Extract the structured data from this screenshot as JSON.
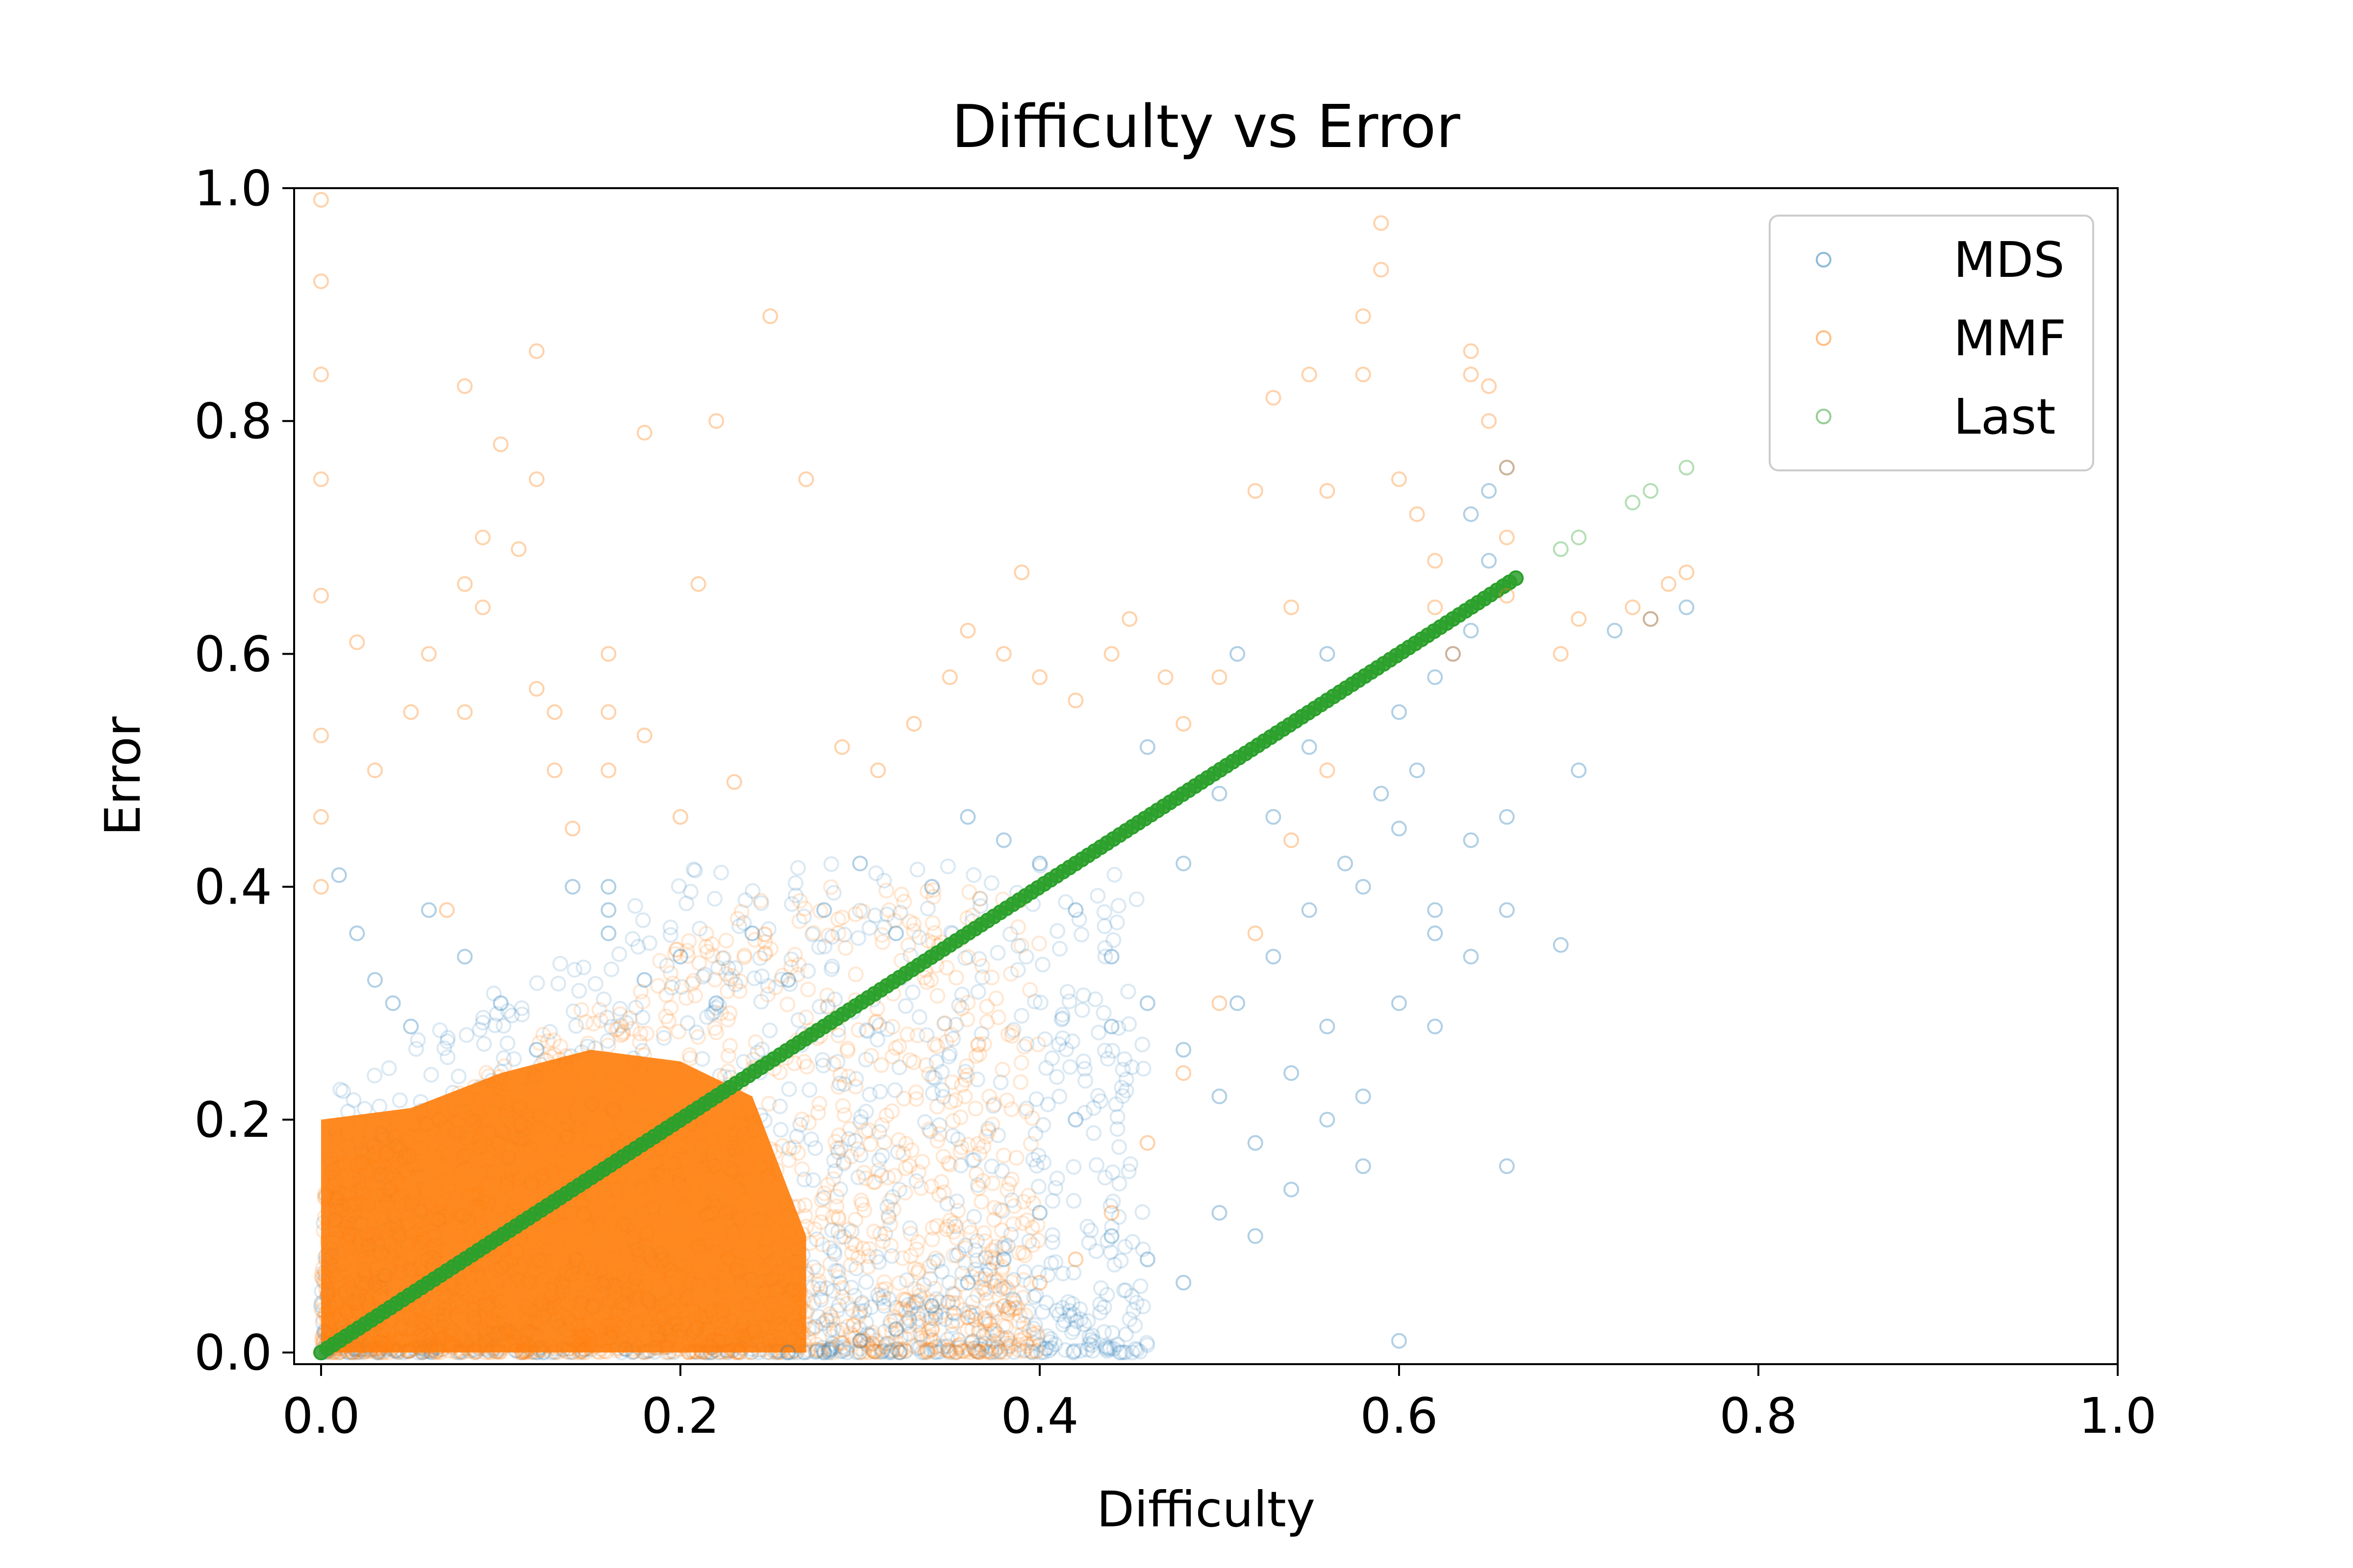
{
  "chart_data": {
    "type": "scatter",
    "title": "Difficulty vs Error",
    "xlabel": "Difficulty",
    "ylabel": "Error",
    "xlim": [
      -0.015,
      1.0
    ],
    "ylim": [
      -0.01,
      1.0
    ],
    "xticks": [
      "0.0",
      "0.2",
      "0.4",
      "0.6",
      "0.8",
      "1.0"
    ],
    "yticks": [
      "0.0",
      "0.2",
      "0.4",
      "0.6",
      "0.8",
      "1.0"
    ],
    "xtick_values": [
      0.0,
      0.2,
      0.4,
      0.6,
      0.8,
      1.0
    ],
    "ytick_values": [
      0.0,
      0.2,
      0.4,
      0.6,
      0.8,
      1.0
    ],
    "grid": false,
    "legend_position": "top-right",
    "marker": "hollow-circle",
    "series": [
      {
        "name": "MDS",
        "color": "#1f77b4",
        "opacity": 0.15,
        "points": [
          [
            0.01,
            0.41
          ],
          [
            0.02,
            0.36
          ],
          [
            0.03,
            0.32
          ],
          [
            0.04,
            0.3
          ],
          [
            0.05,
            0.28
          ],
          [
            0.06,
            0.38
          ],
          [
            0.08,
            0.34
          ],
          [
            0.1,
            0.3
          ],
          [
            0.12,
            0.26
          ],
          [
            0.14,
            0.4
          ],
          [
            0.16,
            0.38
          ],
          [
            0.16,
            0.4
          ],
          [
            0.16,
            0.36
          ],
          [
            0.18,
            0.32
          ],
          [
            0.2,
            0.34
          ],
          [
            0.22,
            0.3
          ],
          [
            0.24,
            0.36
          ],
          [
            0.26,
            0.32
          ],
          [
            0.28,
            0.38
          ],
          [
            0.3,
            0.42
          ],
          [
            0.32,
            0.36
          ],
          [
            0.34,
            0.4
          ],
          [
            0.36,
            0.46
          ],
          [
            0.38,
            0.44
          ],
          [
            0.4,
            0.42
          ],
          [
            0.42,
            0.38
          ],
          [
            0.44,
            0.34
          ],
          [
            0.46,
            0.3
          ],
          [
            0.48,
            0.26
          ],
          [
            0.5,
            0.22
          ],
          [
            0.52,
            0.18
          ],
          [
            0.54,
            0.14
          ],
          [
            0.56,
            0.2
          ],
          [
            0.58,
            0.16
          ],
          [
            0.6,
            0.01
          ],
          [
            0.62,
            0.28
          ],
          [
            0.64,
            0.34
          ],
          [
            0.66,
            0.38
          ],
          [
            0.65,
            0.74
          ],
          [
            0.66,
            0.76
          ],
          [
            0.64,
            0.72
          ],
          [
            0.65,
            0.68
          ],
          [
            0.7,
            0.5
          ],
          [
            0.74,
            0.63
          ],
          [
            0.76,
            0.64
          ],
          [
            0.72,
            0.62
          ],
          [
            0.69,
            0.35
          ],
          [
            0.66,
            0.16
          ],
          [
            0.62,
            0.36
          ],
          [
            0.6,
            0.45
          ],
          [
            0.58,
            0.4
          ],
          [
            0.56,
            0.6
          ],
          [
            0.55,
            0.52
          ],
          [
            0.53,
            0.46
          ],
          [
            0.51,
            0.6
          ],
          [
            0.5,
            0.48
          ],
          [
            0.48,
            0.42
          ],
          [
            0.46,
            0.52
          ],
          [
            0.44,
            0.28
          ],
          [
            0.42,
            0.2
          ],
          [
            0.4,
            0.12
          ],
          [
            0.38,
            0.08
          ],
          [
            0.36,
            0.06
          ],
          [
            0.34,
            0.04
          ],
          [
            0.32,
            0.02
          ],
          [
            0.3,
            0.01
          ],
          [
            0.28,
            0.0
          ],
          [
            0.26,
            0.0
          ],
          [
            0.44,
            0.1
          ],
          [
            0.46,
            0.08
          ],
          [
            0.48,
            0.06
          ],
          [
            0.5,
            0.12
          ],
          [
            0.52,
            0.1
          ],
          [
            0.54,
            0.24
          ],
          [
            0.56,
            0.28
          ],
          [
            0.58,
            0.22
          ],
          [
            0.6,
            0.3
          ],
          [
            0.62,
            0.38
          ],
          [
            0.64,
            0.44
          ],
          [
            0.66,
            0.46
          ],
          [
            0.6,
            0.55
          ],
          [
            0.62,
            0.58
          ],
          [
            0.63,
            0.6
          ],
          [
            0.64,
            0.62
          ],
          [
            0.61,
            0.5
          ],
          [
            0.59,
            0.48
          ],
          [
            0.57,
            0.42
          ],
          [
            0.55,
            0.38
          ],
          [
            0.53,
            0.34
          ],
          [
            0.51,
            0.3
          ]
        ]
      },
      {
        "name": "MMF",
        "color": "#ff7f0e",
        "opacity": 0.15,
        "points": [
          [
            0.0,
            0.99
          ],
          [
            0.0,
            0.92
          ],
          [
            0.0,
            0.84
          ],
          [
            0.0,
            0.75
          ],
          [
            0.0,
            0.65
          ],
          [
            0.0,
            0.53
          ],
          [
            0.0,
            0.46
          ],
          [
            0.0,
            0.4
          ],
          [
            0.02,
            0.61
          ],
          [
            0.03,
            0.5
          ],
          [
            0.05,
            0.55
          ],
          [
            0.06,
            0.6
          ],
          [
            0.07,
            0.38
          ],
          [
            0.08,
            0.55
          ],
          [
            0.08,
            0.66
          ],
          [
            0.08,
            0.83
          ],
          [
            0.09,
            0.7
          ],
          [
            0.09,
            0.64
          ],
          [
            0.1,
            0.78
          ],
          [
            0.11,
            0.69
          ],
          [
            0.12,
            0.86
          ],
          [
            0.12,
            0.75
          ],
          [
            0.12,
            0.57
          ],
          [
            0.13,
            0.55
          ],
          [
            0.13,
            0.5
          ],
          [
            0.14,
            0.45
          ],
          [
            0.16,
            0.6
          ],
          [
            0.16,
            0.55
          ],
          [
            0.16,
            0.5
          ],
          [
            0.18,
            0.79
          ],
          [
            0.18,
            0.53
          ],
          [
            0.2,
            0.46
          ],
          [
            0.21,
            0.66
          ],
          [
            0.22,
            0.8
          ],
          [
            0.23,
            0.49
          ],
          [
            0.25,
            0.89
          ],
          [
            0.27,
            0.75
          ],
          [
            0.29,
            0.52
          ],
          [
            0.31,
            0.5
          ],
          [
            0.33,
            0.54
          ],
          [
            0.35,
            0.58
          ],
          [
            0.36,
            0.62
          ],
          [
            0.38,
            0.6
          ],
          [
            0.39,
            0.67
          ],
          [
            0.4,
            0.58
          ],
          [
            0.42,
            0.56
          ],
          [
            0.44,
            0.6
          ],
          [
            0.45,
            0.63
          ],
          [
            0.47,
            0.58
          ],
          [
            0.48,
            0.54
          ],
          [
            0.5,
            0.58
          ],
          [
            0.52,
            0.74
          ],
          [
            0.53,
            0.82
          ],
          [
            0.54,
            0.64
          ],
          [
            0.55,
            0.84
          ],
          [
            0.56,
            0.74
          ],
          [
            0.58,
            0.84
          ],
          [
            0.58,
            0.89
          ],
          [
            0.59,
            0.97
          ],
          [
            0.59,
            0.93
          ],
          [
            0.6,
            0.75
          ],
          [
            0.61,
            0.72
          ],
          [
            0.62,
            0.68
          ],
          [
            0.62,
            0.64
          ],
          [
            0.63,
            0.6
          ],
          [
            0.64,
            0.84
          ],
          [
            0.64,
            0.86
          ],
          [
            0.65,
            0.83
          ],
          [
            0.65,
            0.8
          ],
          [
            0.66,
            0.76
          ],
          [
            0.66,
            0.7
          ],
          [
            0.66,
            0.65
          ],
          [
            0.69,
            0.6
          ],
          [
            0.7,
            0.63
          ],
          [
            0.73,
            0.64
          ],
          [
            0.75,
            0.66
          ],
          [
            0.76,
            0.67
          ],
          [
            0.74,
            0.63
          ],
          [
            0.56,
            0.5
          ],
          [
            0.54,
            0.44
          ],
          [
            0.52,
            0.36
          ],
          [
            0.5,
            0.3
          ],
          [
            0.48,
            0.24
          ],
          [
            0.46,
            0.18
          ],
          [
            0.44,
            0.12
          ],
          [
            0.42,
            0.08
          ],
          [
            0.4,
            0.06
          ],
          [
            0.38,
            0.04
          ],
          [
            0.36,
            0.03
          ],
          [
            0.34,
            0.02
          ]
        ]
      },
      {
        "name": "Last",
        "color": "#2ca02c",
        "opacity": 0.15,
        "points": [
          [
            0.66,
            0.66
          ],
          [
            0.69,
            0.69
          ],
          [
            0.7,
            0.7
          ],
          [
            0.73,
            0.73
          ],
          [
            0.74,
            0.74
          ],
          [
            0.76,
            0.76
          ]
        ]
      }
    ],
    "dense_region": {
      "mds_band_x": [
        0.0,
        0.27
      ],
      "mmf_band_x": [
        0.0,
        0.26
      ],
      "last_line_x": [
        0.0,
        0.66
      ]
    }
  }
}
